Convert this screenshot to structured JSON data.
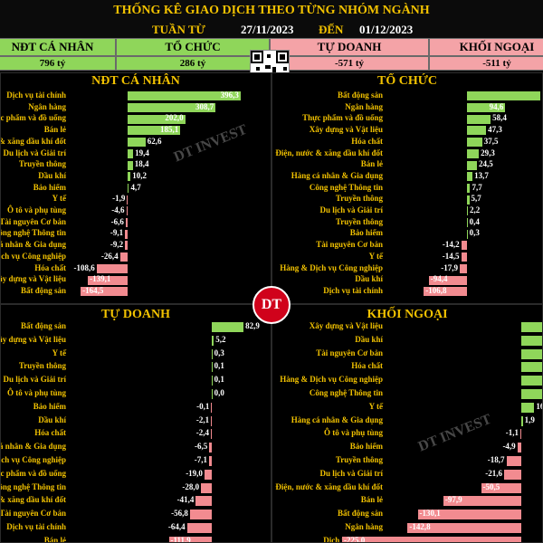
{
  "header": {
    "title": "THỐNG KÊ GIAO DỊCH THEO TỪNG NHÓM NGÀNH",
    "week_label": "TUẦN TỪ",
    "date_from": "27/11/2023",
    "to_label": "ĐẾN",
    "date_to": "01/12/2023"
  },
  "summary": [
    {
      "name": "NĐT CÁ NHÂN",
      "value": "796 tỷ",
      "color": "#8fd65a"
    },
    {
      "name": "TỔ CHỨC",
      "value": "286 tỷ",
      "color": "#8fd65a"
    },
    {
      "name": "TỰ DOANH",
      "value": "-571 tỷ",
      "color": "#f4a3a7"
    },
    {
      "name": "KHỐI NGOẠI",
      "value": "-511 tỷ",
      "color": "#f4a3a7"
    }
  ],
  "watermark": "DT INVEST",
  "logo_text": "DT",
  "chart_data": [
    {
      "type": "bar",
      "orientation": "horizontal",
      "title": "NĐT CÁ NHÂN",
      "categories": [
        "Dịch vụ tài chính",
        "Ngân hàng",
        "Thực phẩm và đồ uống",
        "Bán lẻ",
        "Điện, nước & xăng dầu khí đốt",
        "Du lịch và Giải trí",
        "Truyền thông",
        "Dầu khí",
        "Bảo hiểm",
        "Y tế",
        "Ô tô và phụ tùng",
        "Tài nguyên Cơ bản",
        "Công nghệ Thông tin",
        "Hàng cá nhân & Gia dụng",
        "Hàng & Dịch vụ Công nghiệp",
        "Hóa chất",
        "Xây dựng và Vật liệu",
        "Bất động sản"
      ],
      "values": [
        396.3,
        308.7,
        202.0,
        185.1,
        62.6,
        19.4,
        18.4,
        10.2,
        4.7,
        -1.9,
        -4.6,
        -6.6,
        -9.1,
        -9.2,
        -26.4,
        -108.6,
        -139.1,
        -164.5
      ],
      "labels": [
        "396,3",
        "308,7",
        "202,0",
        "185,1",
        "62,6",
        "19,4",
        "18,4",
        "10,2",
        "4,7",
        "-1,9",
        "-4,6",
        "-6,6",
        "-9,1",
        "-9,2",
        "-26,4",
        "-108,6",
        "-139,1",
        "-164,5"
      ],
      "scale_max": 400
    },
    {
      "type": "bar",
      "orientation": "horizontal",
      "title": "TỔ CHỨC",
      "categories": [
        "Bất động sản",
        "Ngân hàng",
        "Thực phẩm và đồ uống",
        "Xây dựng và Vật liệu",
        "Hóa chất",
        "Điện, nước & xăng dầu khí đốt",
        "Bán lẻ",
        "Hàng cá nhân & Gia dụng",
        "Công nghệ Thông tin",
        "Truyền thông",
        "Du lịch và Giải trí",
        "Truyền thông",
        "Bảo hiểm",
        "Tài nguyên Cơ bản",
        "Y tế",
        "Hàng & Dịch vụ Công nghiệp",
        "Dầu khí",
        "Dịch vụ tài chính"
      ],
      "values": [
        180.0,
        94.6,
        58.4,
        47.3,
        37.5,
        29.3,
        24.5,
        13.7,
        7.7,
        5.7,
        2.2,
        0.4,
        0.3,
        -14.2,
        -14.5,
        -17.9,
        -94.4,
        -106.8
      ],
      "labels": [
        "",
        "94,6",
        "58,4",
        "47,3",
        "37,5",
        "29,3",
        "24,5",
        "13,7",
        "7,7",
        "5,7",
        "2,2",
        "0,4",
        "0,3",
        "-14,2",
        "-14,5",
        "-17,9",
        "-94,4",
        "-106,8"
      ],
      "scale_max": 190
    },
    {
      "type": "bar",
      "orientation": "horizontal",
      "title": "TỰ DOANH",
      "categories": [
        "Bất động sản",
        "Xây dựng và Vật liệu",
        "Y tế",
        "Truyền thông",
        "Du lịch và Giải trí",
        "Ô tô và phụ tùng",
        "Bảo hiểm",
        "Dầu khí",
        "Hóa chất",
        "Hàng cá nhân & Gia dụng",
        "Hàng & Dịch vụ Công nghiệp",
        "Thực phẩm và đồ uống",
        "Công nghệ Thông tin",
        "Điện, nước & xăng dầu khí đốt",
        "Tài nguyên Cơ bản",
        "Dịch vụ tài chính",
        "Bán lẻ",
        "Ngân hàng"
      ],
      "values": [
        82.9,
        5.2,
        0.3,
        0.1,
        0.1,
        0.0,
        -0.1,
        -2.1,
        -2.4,
        -6.5,
        -7.1,
        -19.0,
        -28.0,
        -41.4,
        -56.8,
        -64.4,
        -111.9,
        -320.5
      ],
      "labels": [
        "82,9",
        "5,2",
        "0,3",
        "0,1",
        "0,1",
        "0,0",
        "-0,1",
        "-2,1",
        "-2,4",
        "-6,5",
        "-7,1",
        "-19,0",
        "-28,0",
        "-41,4",
        "-56,8",
        "-64,4",
        "-111,9",
        "-320,5"
      ],
      "scale_max": 330
    },
    {
      "type": "bar",
      "orientation": "horizontal",
      "title": "KHỐI NGOẠI",
      "categories": [
        "Xây dựng và Vật liệu",
        "Dầu khí",
        "Tài nguyên Cơ bản",
        "Hóa chất",
        "Hàng & Dịch vụ Công nghiệp",
        "Công nghệ Thông tin",
        "Y tế",
        "Hàng cá nhân & Gia dụng",
        "Ô tô và phụ tùng",
        "Bảo hiểm",
        "Truyền thông",
        "Du lịch và Giải trí",
        "Điện, nước & xăng dầu khí đốt",
        "Bán lẻ",
        "Bất động sản",
        "Ngân hàng",
        "Dịch vụ tài chính",
        "Thực phẩm và đồ uống"
      ],
      "values": [
        95.0,
        90.0,
        80.0,
        75.0,
        51.3,
        29.4,
        16.4,
        1.9,
        -1.1,
        -4.9,
        -18.7,
        -21.6,
        -50.5,
        -97.9,
        -130.1,
        -142.8,
        -225.0,
        -241.4
      ],
      "labels": [
        "",
        "",
        "",
        "",
        "51,3",
        "29,4",
        "16,4",
        "1,9",
        "-1,1",
        "-4,9",
        "-18,7",
        "-21,6",
        "-50,5",
        "-97,9",
        "-130,1",
        "-142,8",
        "-225,0",
        "-241,4"
      ],
      "scale_max": 250
    }
  ]
}
